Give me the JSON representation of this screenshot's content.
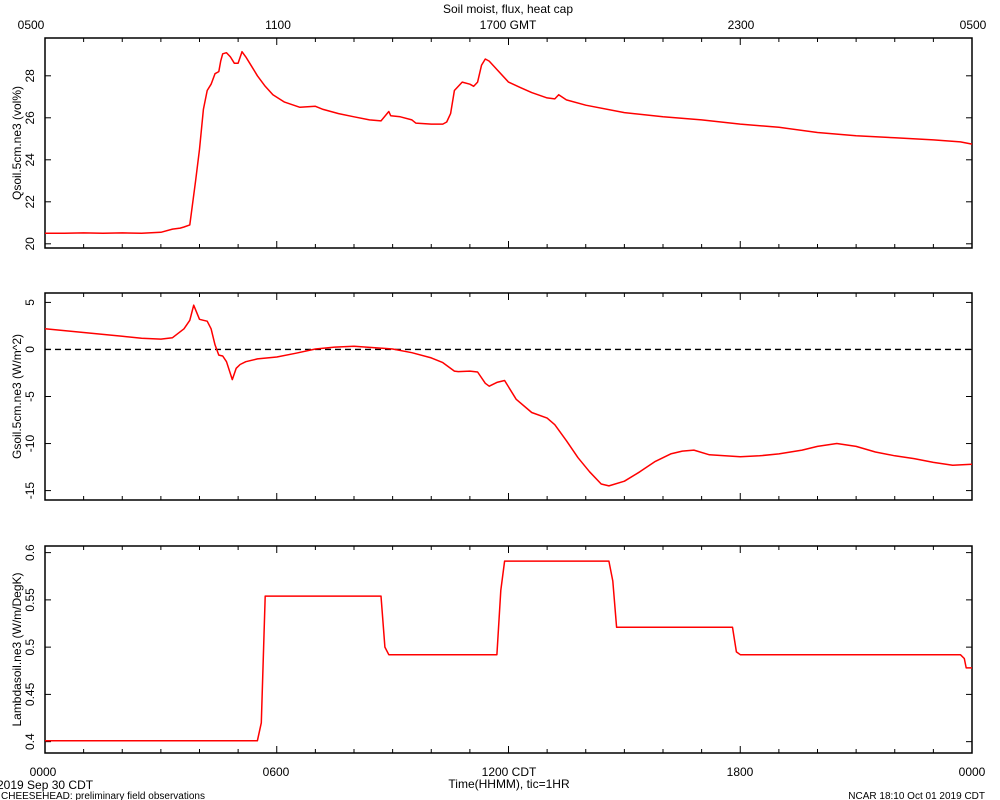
{
  "header": {
    "title": "Soil moist, flux, heat cap",
    "top_ticks": [
      "0500",
      "1100",
      "1700 GMT",
      "2300",
      "0500"
    ]
  },
  "footer": {
    "bottom_ticks": [
      "0000",
      "0600",
      "1200 CDT",
      "1800",
      "0000"
    ],
    "xlabel": "Time(HHMM), tic=1HR",
    "date_label": "2019 Sep 30 CDT",
    "project_label": "CHEESEHEAD: preliminary field observations",
    "credit_label": "NCAR 18:10 Oct 01 2019 CDT"
  },
  "colors": {
    "series": "#ff0000",
    "axis": "#000000"
  },
  "chart_data": [
    {
      "type": "line",
      "ylabel": "Qsoil.5cm.ne3 (vol%)",
      "xlim": [
        0,
        24
      ],
      "ylim": [
        19.8,
        29.8
      ],
      "yticks": [
        20,
        22,
        24,
        26,
        28
      ],
      "zero_line": false,
      "x": [
        0,
        0.5,
        1.0,
        1.5,
        2.0,
        2.5,
        3.0,
        3.3,
        3.5,
        3.6,
        3.75,
        3.9,
        4.0,
        4.1,
        4.2,
        4.3,
        4.4,
        4.5,
        4.55,
        4.6,
        4.7,
        4.8,
        4.9,
        5.0,
        5.1,
        5.2,
        5.3,
        5.5,
        5.7,
        5.9,
        6.2,
        6.6,
        7.0,
        7.2,
        7.6,
        8.0,
        8.4,
        8.7,
        8.9,
        8.95,
        9.2,
        9.5,
        9.6,
        10.0,
        10.3,
        10.4,
        10.5,
        10.6,
        10.8,
        11.0,
        11.1,
        11.2,
        11.3,
        11.4,
        11.5,
        11.7,
        12.0,
        12.3,
        12.6,
        13.0,
        13.2,
        13.3,
        13.5,
        14.0,
        15.0,
        16.0,
        17.0,
        18.0,
        19.0,
        20.0,
        21.0,
        22.0,
        23.0,
        23.7,
        24.0
      ],
      "y": [
        20.5,
        20.5,
        20.52,
        20.5,
        20.52,
        20.5,
        20.55,
        20.7,
        20.75,
        20.8,
        20.9,
        23.0,
        24.5,
        26.4,
        27.3,
        27.6,
        28.1,
        28.2,
        28.7,
        29.05,
        29.1,
        28.9,
        28.6,
        28.6,
        29.15,
        28.9,
        28.6,
        28.0,
        27.5,
        27.1,
        26.75,
        26.5,
        26.55,
        26.4,
        26.2,
        26.05,
        25.9,
        25.85,
        26.3,
        26.1,
        26.05,
        25.9,
        25.75,
        25.7,
        25.7,
        25.8,
        26.2,
        27.3,
        27.7,
        27.6,
        27.5,
        27.7,
        28.5,
        28.8,
        28.7,
        28.3,
        27.7,
        27.45,
        27.2,
        26.95,
        26.9,
        27.1,
        26.85,
        26.6,
        26.25,
        26.05,
        25.9,
        25.7,
        25.55,
        25.3,
        25.15,
        25.05,
        24.95,
        24.85,
        24.75
      ]
    },
    {
      "type": "line",
      "ylabel": "Gsoil.5cm.ne3 (W/m^2)",
      "xlim": [
        0,
        24
      ],
      "ylim": [
        -16,
        6
      ],
      "yticks": [
        5,
        0,
        -5,
        -10,
        -15
      ],
      "zero_line": true,
      "x": [
        0,
        0.5,
        1.0,
        1.5,
        2.0,
        2.5,
        3.0,
        3.3,
        3.6,
        3.75,
        3.85,
        4.0,
        4.1,
        4.2,
        4.3,
        4.4,
        4.5,
        4.6,
        4.7,
        4.85,
        4.95,
        5.05,
        5.2,
        5.5,
        6.0,
        6.5,
        7.0,
        7.5,
        8.0,
        8.5,
        9.0,
        9.5,
        10.0,
        10.3,
        10.6,
        10.7,
        11.0,
        11.2,
        11.4,
        11.5,
        11.7,
        11.9,
        12.2,
        12.6,
        13.0,
        13.2,
        13.5,
        13.8,
        14.1,
        14.4,
        14.6,
        15.0,
        15.4,
        15.8,
        16.2,
        16.5,
        16.8,
        17.2,
        18.0,
        18.5,
        19.0,
        19.6,
        20.0,
        20.5,
        21.0,
        21.5,
        22.0,
        22.5,
        23.0,
        23.5,
        24.0
      ],
      "y": [
        2.2,
        2.0,
        1.8,
        1.6,
        1.4,
        1.2,
        1.1,
        1.25,
        2.2,
        3.1,
        4.7,
        3.2,
        3.1,
        3.0,
        2.2,
        0.5,
        -0.6,
        -0.7,
        -1.3,
        -3.2,
        -2.0,
        -1.6,
        -1.3,
        -1.0,
        -0.8,
        -0.4,
        0.05,
        0.25,
        0.35,
        0.2,
        0.05,
        -0.35,
        -0.9,
        -1.4,
        -2.3,
        -2.35,
        -2.3,
        -2.4,
        -3.6,
        -3.9,
        -3.5,
        -3.3,
        -5.3,
        -6.7,
        -7.3,
        -8.0,
        -9.7,
        -11.5,
        -13.0,
        -14.3,
        -14.5,
        -14.0,
        -13.0,
        -11.9,
        -11.1,
        -10.8,
        -10.7,
        -11.2,
        -11.4,
        -11.3,
        -11.1,
        -10.7,
        -10.3,
        -10.0,
        -10.3,
        -10.9,
        -11.3,
        -11.6,
        -12.0,
        -12.3,
        -12.2
      ]
    },
    {
      "type": "line",
      "ylabel": "Lambdasoil.ne3 (W/m/DegK)",
      "xlim": [
        0,
        24
      ],
      "ylim": [
        0.388,
        0.607
      ],
      "yticks": [
        0.4,
        0.45,
        0.5,
        0.55,
        0.6
      ],
      "zero_line": false,
      "x": [
        0,
        5.5,
        5.6,
        5.7,
        8.7,
        8.8,
        8.9,
        11.7,
        11.8,
        11.9,
        14.6,
        14.7,
        14.8,
        17.8,
        17.9,
        18.0,
        23.7,
        23.8,
        23.85,
        24.0
      ],
      "y": [
        0.401,
        0.401,
        0.42,
        0.554,
        0.554,
        0.5,
        0.492,
        0.492,
        0.56,
        0.591,
        0.591,
        0.57,
        0.521,
        0.521,
        0.495,
        0.492,
        0.492,
        0.488,
        0.478,
        0.478
      ]
    }
  ]
}
